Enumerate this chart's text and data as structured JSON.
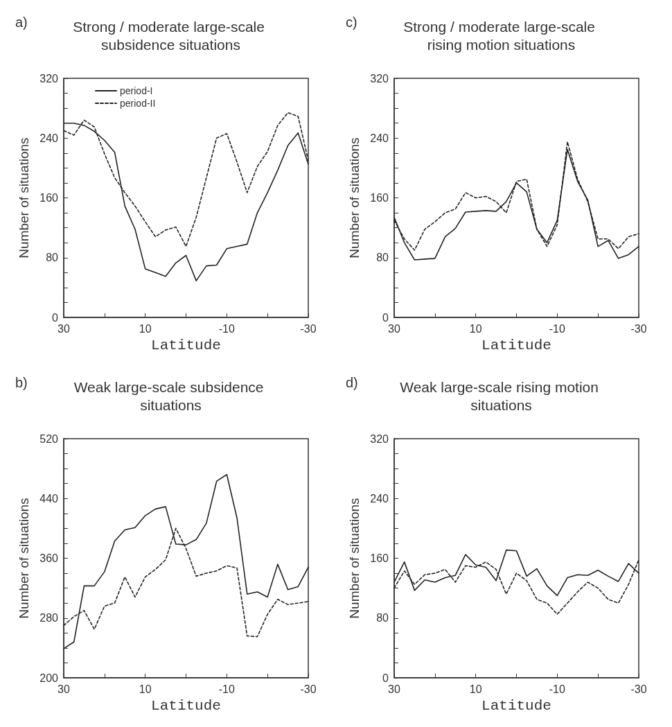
{
  "chart_data": [
    {
      "type": "line",
      "title": "Strong / moderate large-scale subsidence situations",
      "annotations": [
        "a)"
      ],
      "xlabel": "Latitude",
      "ylabel": "Number of situations",
      "legend": "top left",
      "marker": "none",
      "grid": false,
      "x": [
        30,
        27.5,
        25,
        22.5,
        20,
        17.5,
        15,
        12.5,
        10,
        7.5,
        5,
        2.5,
        0,
        -2.5,
        -5,
        -7.5,
        -10,
        -12.5,
        -15,
        -17.5,
        -20,
        -22.5,
        -25,
        -27.5,
        -30
      ],
      "xlim": [
        30,
        -30
      ],
      "xticks": [
        30,
        {
          "value": 20,
          "label": null
        },
        10,
        {
          "value": 0,
          "label": null
        },
        -10,
        {
          "value": -20,
          "label": null
        },
        -30
      ],
      "ylim": [
        0,
        320
      ],
      "yticks": [
        0,
        {
          "value": 20,
          "label": null
        },
        {
          "value": 40,
          "label": null
        },
        {
          "value": 60,
          "label": null
        },
        80,
        {
          "value": 100,
          "label": null
        },
        {
          "value": 120,
          "label": null
        },
        {
          "value": 140,
          "label": null
        },
        160,
        {
          "value": 180,
          "label": null
        },
        {
          "value": 200,
          "label": null
        },
        {
          "value": 220,
          "label": null
        },
        240,
        {
          "value": 260,
          "label": null
        },
        {
          "value": 280,
          "label": null
        },
        {
          "value": 300,
          "label": null
        },
        320
      ],
      "series": [
        {
          "name": "period-I",
          "color": "#222222",
          "line_style": "solid",
          "values": [
            260,
            260,
            257,
            249,
            237,
            221,
            149,
            118,
            65,
            60,
            55,
            73,
            83,
            49,
            69,
            70,
            92,
            95,
            98,
            140,
            167,
            197,
            230,
            247,
            205
          ]
        },
        {
          "name": "period-II",
          "color": "#222222",
          "line_style": "dashed",
          "values": [
            250,
            244,
            264,
            255,
            219,
            187,
            167,
            149,
            128,
            108,
            117,
            121,
            95,
            134,
            187,
            240,
            246,
            208,
            167,
            202,
            222,
            257,
            274,
            269,
            210
          ]
        }
      ]
    },
    {
      "type": "line",
      "title": "Strong / moderate large-scale rising motion situations",
      "annotations": [
        "c)"
      ],
      "xlabel": "Latitude",
      "ylabel": "Number of situations",
      "marker": "none",
      "grid": false,
      "x": [
        30,
        27.5,
        25,
        22.5,
        20,
        17.5,
        15,
        12.5,
        10,
        7.5,
        5,
        2.5,
        0,
        -2.5,
        -5,
        -7.5,
        -10,
        -12.5,
        -15,
        -17.5,
        -20,
        -22.5,
        -25,
        -27.5,
        -30
      ],
      "xlim": [
        30,
        -30
      ],
      "xticks": [
        30,
        {
          "value": 20,
          "label": null
        },
        10,
        {
          "value": 0,
          "label": null
        },
        -10,
        {
          "value": -20,
          "label": null
        },
        -30
      ],
      "ylim": [
        0,
        320
      ],
      "yticks": [
        0,
        {
          "value": 20,
          "label": null
        },
        {
          "value": 40,
          "label": null
        },
        {
          "value": 60,
          "label": null
        },
        80,
        {
          "value": 100,
          "label": null
        },
        {
          "value": 120,
          "label": null
        },
        {
          "value": 140,
          "label": null
        },
        160,
        {
          "value": 180,
          "label": null
        },
        {
          "value": 200,
          "label": null
        },
        {
          "value": 220,
          "label": null
        },
        240,
        {
          "value": 260,
          "label": null
        },
        {
          "value": 280,
          "label": null
        },
        {
          "value": 300,
          "label": null
        },
        320
      ],
      "series": [
        {
          "color": "#222222",
          "line_style": "solid",
          "values": [
            134,
            100,
            77,
            78,
            79,
            108,
            119,
            141,
            142,
            143,
            142,
            155,
            180,
            168,
            118,
            100,
            130,
            225,
            182,
            157,
            95,
            103,
            79,
            84,
            95
          ]
        },
        {
          "color": "#222222",
          "line_style": "dashed",
          "values": [
            130,
            105,
            90,
            118,
            128,
            140,
            145,
            167,
            160,
            162,
            155,
            140,
            182,
            185,
            118,
            95,
            124,
            235,
            185,
            155,
            105,
            105,
            92,
            108,
            112
          ]
        }
      ]
    },
    {
      "type": "line",
      "title": "Weak large-scale subsidence situations",
      "annotations": [
        "b)"
      ],
      "xlabel": "Latitude",
      "ylabel": "Number of situations",
      "marker": "none",
      "grid": false,
      "x": [
        30,
        27.5,
        25,
        22.5,
        20,
        17.5,
        15,
        12.5,
        10,
        7.5,
        5,
        2.5,
        0,
        -2.5,
        -5,
        -7.5,
        -10,
        -12.5,
        -15,
        -17.5,
        -20,
        -22.5,
        -25,
        -27.5,
        -30
      ],
      "xlim": [
        30,
        -30
      ],
      "xticks": [
        30,
        {
          "value": 20,
          "label": null
        },
        10,
        {
          "value": 0,
          "label": null
        },
        -10,
        {
          "value": -20,
          "label": null
        },
        -30
      ],
      "ylim": [
        200,
        520
      ],
      "yticks": [
        200,
        {
          "value": 220,
          "label": null
        },
        {
          "value": 240,
          "label": null
        },
        {
          "value": 260,
          "label": null
        },
        280,
        {
          "value": 300,
          "label": null
        },
        {
          "value": 320,
          "label": null
        },
        {
          "value": 340,
          "label": null
        },
        360,
        {
          "value": 380,
          "label": null
        },
        {
          "value": 400,
          "label": null
        },
        {
          "value": 420,
          "label": null
        },
        440,
        {
          "value": 460,
          "label": null
        },
        {
          "value": 480,
          "label": null
        },
        {
          "value": 500,
          "label": null
        },
        520
      ],
      "series": [
        {
          "color": "#222222",
          "line_style": "solid",
          "values": [
            239,
            248,
            323,
            323,
            342,
            383,
            398,
            401,
            417,
            426,
            429,
            379,
            378,
            385,
            407,
            463,
            472,
            414,
            312,
            315,
            308,
            352,
            318,
            322,
            348
          ]
        },
        {
          "color": "#222222",
          "line_style": "dashed",
          "values": [
            270,
            282,
            290,
            265,
            296,
            300,
            335,
            308,
            335,
            345,
            358,
            400,
            373,
            336,
            340,
            343,
            350,
            347,
            256,
            255,
            285,
            305,
            298,
            300,
            302
          ]
        }
      ]
    },
    {
      "type": "line",
      "title": "Weak large-scale rising motion situations",
      "annotations": [
        "d)"
      ],
      "xlabel": "Latitude",
      "ylabel": "Number of situations",
      "marker": "none",
      "grid": false,
      "x": [
        30,
        27.5,
        25,
        22.5,
        20,
        17.5,
        15,
        12.5,
        10,
        7.5,
        5,
        2.5,
        0,
        -2.5,
        -5,
        -7.5,
        -10,
        -12.5,
        -15,
        -17.5,
        -20,
        -22.5,
        -25,
        -27.5,
        -30
      ],
      "xlim": [
        30,
        -30
      ],
      "xticks": [
        30,
        {
          "value": 20,
          "label": null
        },
        10,
        {
          "value": 0,
          "label": null
        },
        -10,
        {
          "value": -20,
          "label": null
        },
        -30
      ],
      "ylim": [
        0,
        320
      ],
      "yticks": [
        0,
        {
          "value": 20,
          "label": null
        },
        {
          "value": 40,
          "label": null
        },
        {
          "value": 60,
          "label": null
        },
        80,
        {
          "value": 100,
          "label": null
        },
        {
          "value": 120,
          "label": null
        },
        {
          "value": 140,
          "label": null
        },
        160,
        {
          "value": 180,
          "label": null
        },
        {
          "value": 200,
          "label": null
        },
        {
          "value": 220,
          "label": null
        },
        240,
        {
          "value": 260,
          "label": null
        },
        {
          "value": 280,
          "label": null
        },
        {
          "value": 300,
          "label": null
        },
        320
      ],
      "series": [
        {
          "color": "#222222",
          "line_style": "solid",
          "values": [
            128,
            155,
            117,
            131,
            128,
            134,
            137,
            165,
            151,
            148,
            130,
            171,
            170,
            136,
            146,
            123,
            110,
            134,
            138,
            137,
            144,
            136,
            129,
            153,
            140
          ]
        },
        {
          "color": "#222222",
          "line_style": "dashed",
          "values": [
            120,
            143,
            125,
            138,
            140,
            145,
            128,
            150,
            148,
            155,
            145,
            112,
            140,
            130,
            105,
            100,
            85,
            100,
            115,
            128,
            120,
            105,
            100,
            125,
            158
          ]
        }
      ]
    }
  ]
}
